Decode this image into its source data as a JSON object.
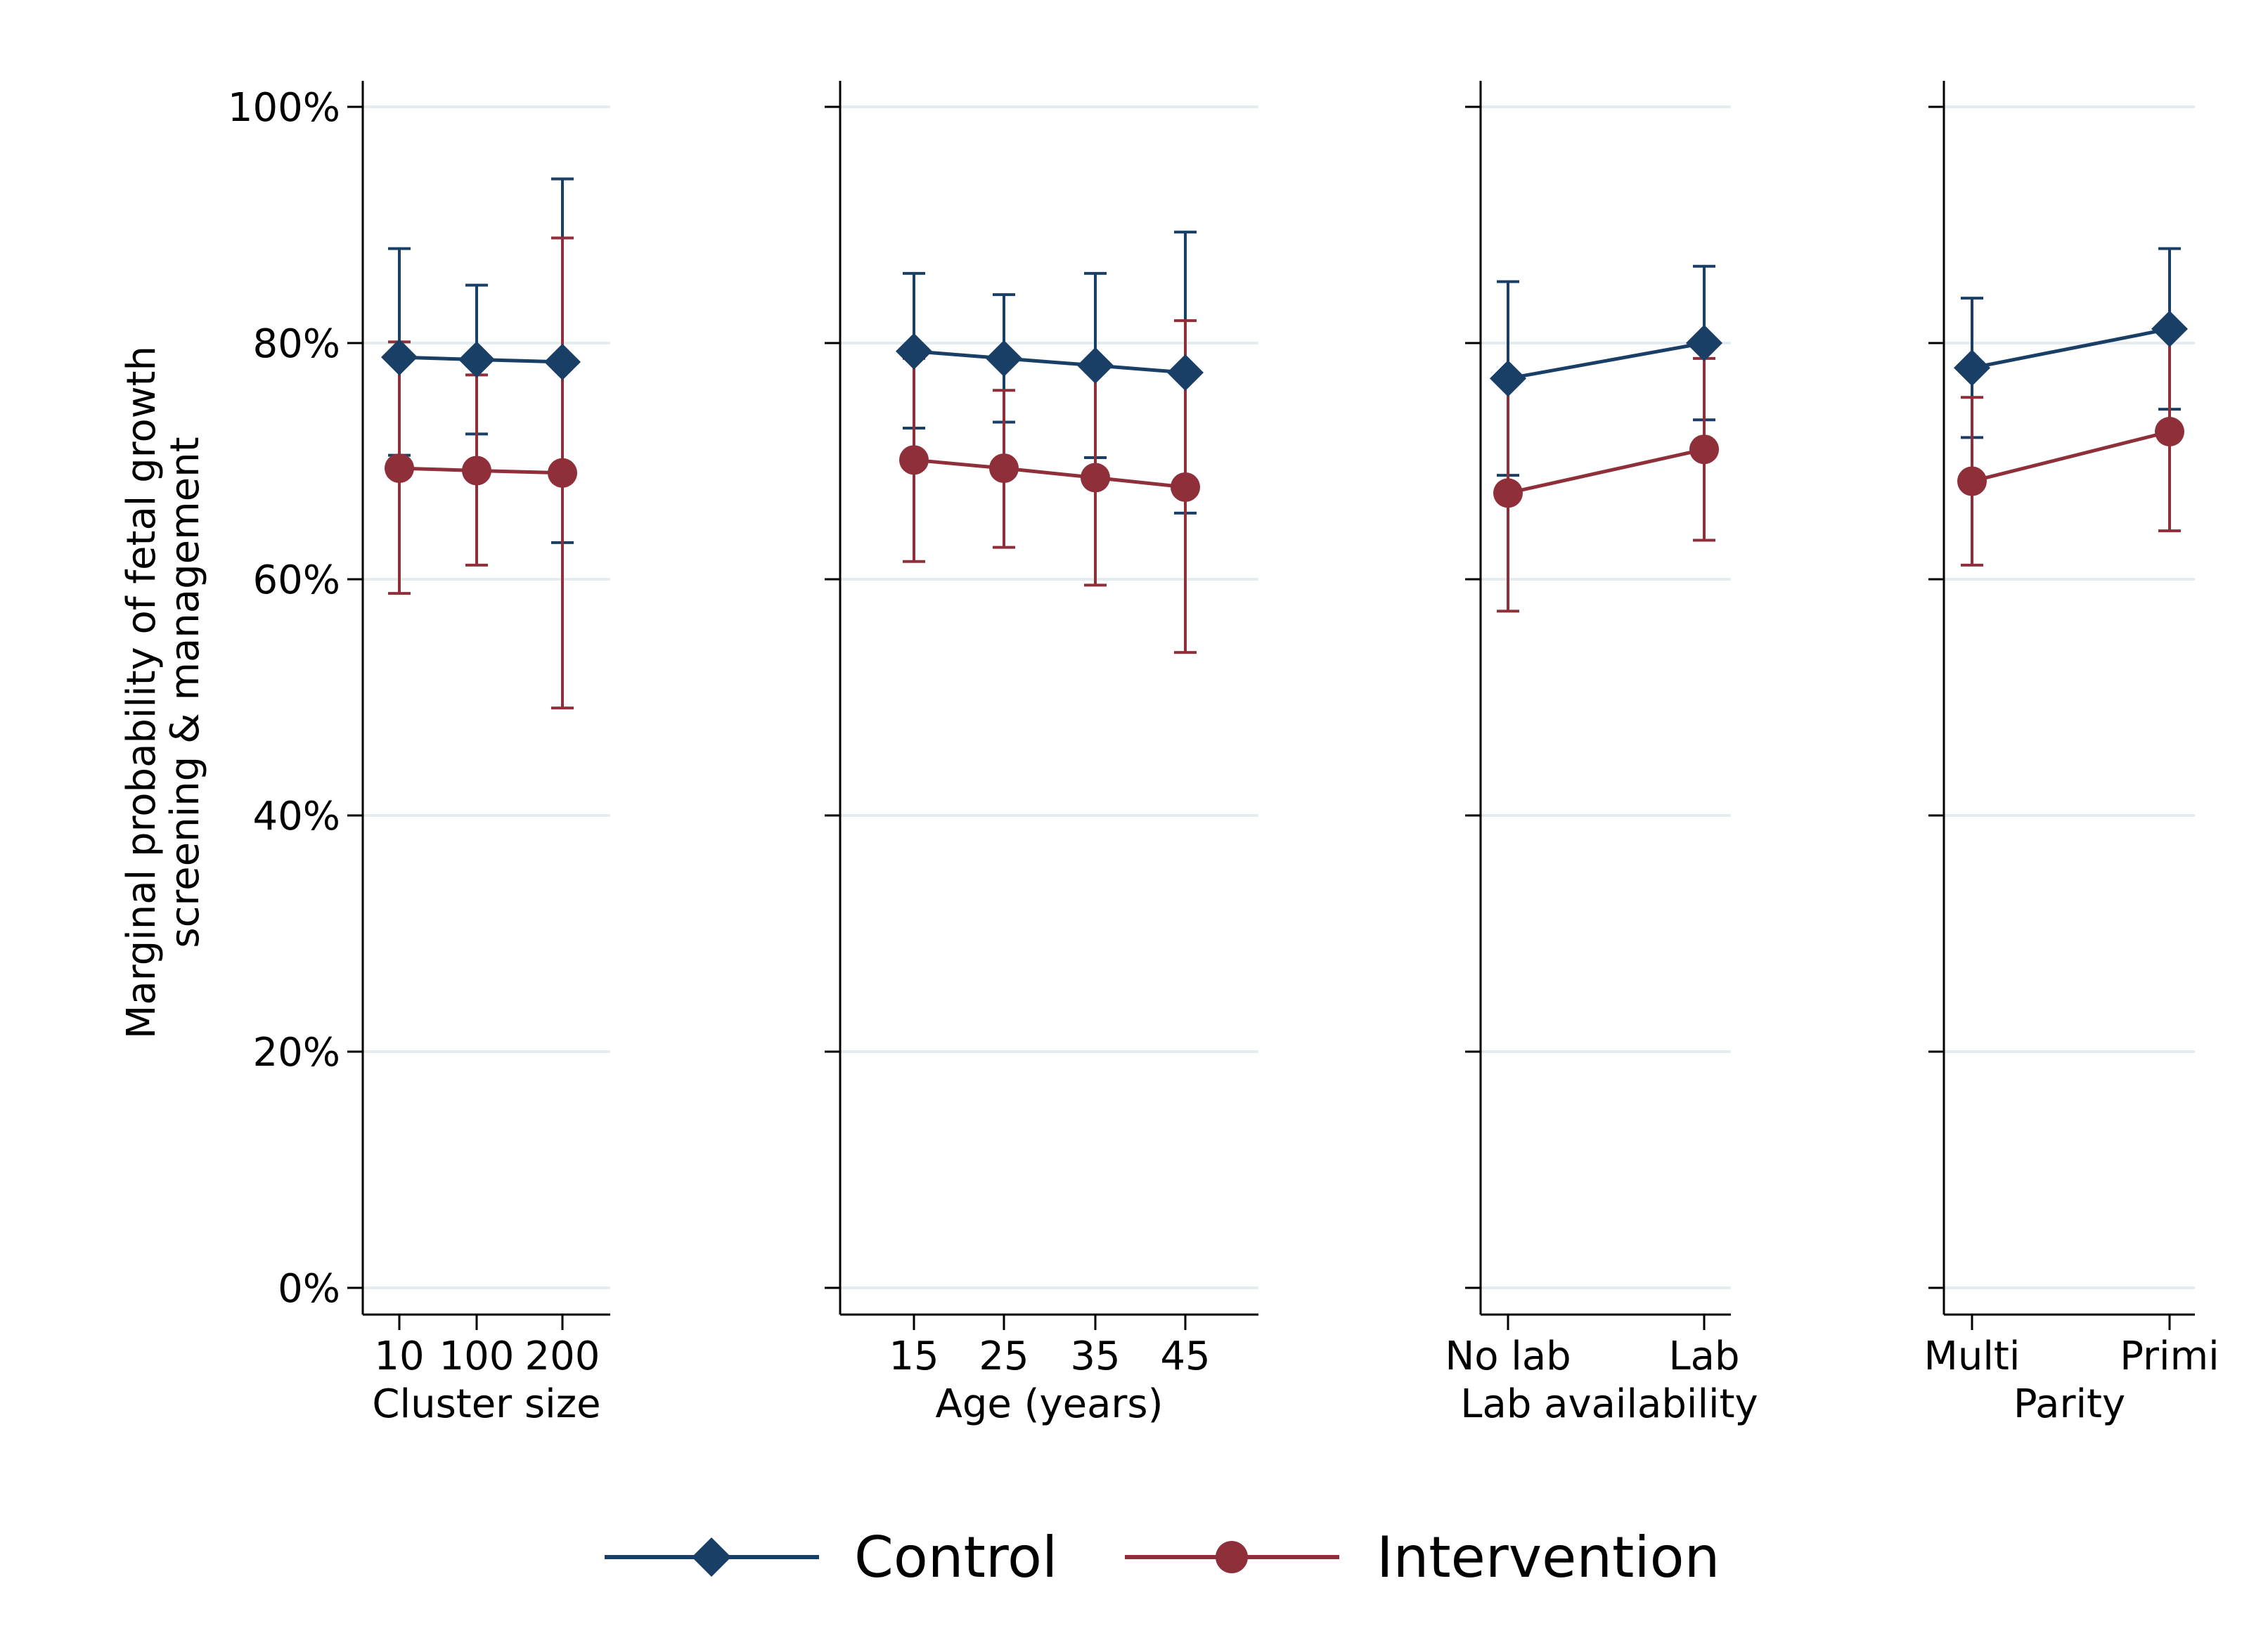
{
  "chart_data": {
    "type": "line",
    "ylabel_lines": [
      "Marginal probability of fetal growth",
      "screening & management"
    ],
    "ylim": [
      0,
      1
    ],
    "yticks": [
      0,
      0.2,
      0.4,
      0.6,
      0.8,
      1.0
    ],
    "ytick_labels": [
      "0%",
      "20%",
      "40%",
      "60%",
      "80%",
      "100%"
    ],
    "grid": true,
    "legend_position": "bottom",
    "colors": {
      "control": "#1a3f66",
      "intervention": "#8f2f3a",
      "grid": "#e4ecf0"
    },
    "series_styles": [
      {
        "name": "Control",
        "marker": "diamond"
      },
      {
        "name": "Intervention",
        "marker": "circle"
      }
    ],
    "panels": [
      {
        "xlabel": "Cluster size",
        "x": [
          10,
          100,
          200
        ],
        "x_tick_labels": [
          "10",
          "100",
          "200"
        ],
        "series": [
          {
            "name": "Control",
            "values": [
              0.788,
              0.786,
              0.784
            ],
            "ci_low": [
              0.705,
              0.723,
              0.631
            ],
            "ci_high": [
              0.88,
              0.849,
              0.939
            ]
          },
          {
            "name": "Intervention",
            "values": [
              0.694,
              0.692,
              0.69
            ],
            "ci_low": [
              0.588,
              0.612,
              0.491
            ],
            "ci_high": [
              0.801,
              0.773,
              0.889
            ]
          }
        ]
      },
      {
        "xlabel": "Age (years)",
        "x": [
          15,
          25,
          35,
          45
        ],
        "x_tick_labels": [
          "15",
          "25",
          "35",
          "45"
        ],
        "series": [
          {
            "name": "Control",
            "values": [
              0.793,
              0.787,
              0.781,
              0.775
            ],
            "ci_low": [
              0.728,
              0.733,
              0.703,
              0.656
            ],
            "ci_high": [
              0.859,
              0.841,
              0.859,
              0.894
            ]
          },
          {
            "name": "Intervention",
            "values": [
              0.701,
              0.694,
              0.686,
              0.678
            ],
            "ci_low": [
              0.615,
              0.627,
              0.595,
              0.538
            ],
            "ci_high": [
              0.787,
              0.76,
              0.776,
              0.819
            ]
          }
        ]
      },
      {
        "xlabel": "Lab availability",
        "x": [
          "No lab",
          "Lab"
        ],
        "x_tick_labels": [
          "No lab",
          "Lab"
        ],
        "series": [
          {
            "name": "Control",
            "values": [
              0.77,
              0.8
            ],
            "ci_low": [
              0.688,
              0.735
            ],
            "ci_high": [
              0.852,
              0.865
            ]
          },
          {
            "name": "Intervention",
            "values": [
              0.673,
              0.71
            ],
            "ci_low": [
              0.573,
              0.633
            ],
            "ci_high": [
              0.773,
              0.787
            ]
          }
        ]
      },
      {
        "xlabel": "Parity",
        "x": [
          "Multi",
          "Primi"
        ],
        "x_tick_labels": [
          "Multi",
          "Primi"
        ],
        "series": [
          {
            "name": "Control",
            "values": [
              0.779,
              0.812
            ],
            "ci_low": [
              0.72,
              0.744
            ],
            "ci_high": [
              0.838,
              0.88
            ]
          },
          {
            "name": "Intervention",
            "values": [
              0.683,
              0.725
            ],
            "ci_low": [
              0.612,
              0.641
            ],
            "ci_high": [
              0.754,
              0.809
            ]
          }
        ]
      }
    ]
  }
}
